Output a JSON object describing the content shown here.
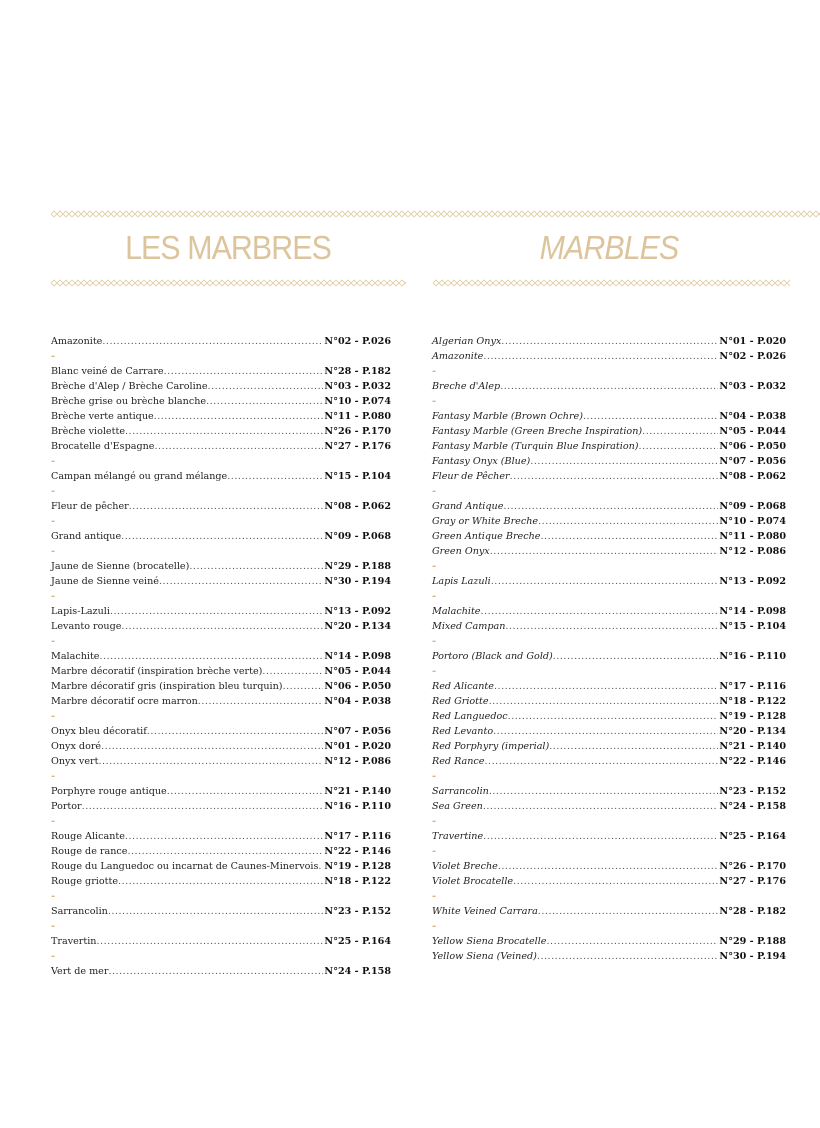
{
  "colors": {
    "accent": "#d9b57a",
    "title": "#dcc49c",
    "text": "#222222"
  },
  "left": {
    "title": "LES MARBRES",
    "items": [
      {
        "name": "Amazonite",
        "ref": "N°02 - P.026"
      },
      "-",
      {
        "name": "Blanc veiné de Carrare",
        "ref": "N°28 - P.182"
      },
      {
        "name": "Brèche d'Alep / Brèche Caroline",
        "ref": "N°03 - P.032"
      },
      {
        "name": "Brèche grise ou brèche blanche",
        "ref": "N°10 - P.074"
      },
      {
        "name": "Brèche verte antique",
        "ref": "N°11 - P.080"
      },
      {
        "name": "Brèche violette",
        "ref": "N°26 - P.170"
      },
      {
        "name": "Brocatelle d'Espagne",
        "ref": "N°27 - P.176"
      },
      "-",
      {
        "name": "Campan mélangé ou grand mélange",
        "ref": "N°15 - P.104"
      },
      "-",
      {
        "name": "Fleur de pêcher",
        "ref": "N°08 - P.062"
      },
      "-",
      {
        "name": "Grand antique",
        "ref": "N°09 - P.068"
      },
      "-",
      {
        "name": "Jaune de Sienne (brocatelle)",
        "ref": "N°29 - P.188"
      },
      {
        "name": "Jaune de Sienne veiné",
        "ref": "N°30 - P.194"
      },
      "-",
      {
        "name": "Lapis-Lazuli",
        "ref": "N°13 - P.092"
      },
      {
        "name": "Levanto rouge",
        "ref": "N°20 - P.134"
      },
      "-",
      {
        "name": "Malachite",
        "ref": "N°14 - P.098"
      },
      {
        "name": "Marbre décoratif (inspiration brèche verte)",
        "ref": "N°05 - P.044"
      },
      {
        "name": "Marbre décoratif gris (inspiration bleu turquin)",
        "ref": "N°06 - P.050"
      },
      {
        "name": "Marbre décoratif ocre marron",
        "ref": "N°04 - P.038"
      },
      "-",
      {
        "name": "Onyx bleu décoratif",
        "ref": "N°07 - P.056"
      },
      {
        "name": "Onyx doré",
        "ref": "N°01 - P.020"
      },
      {
        "name": "Onyx vert",
        "ref": "N°12 - P.086"
      },
      "-",
      {
        "name": "Porphyre rouge antique",
        "ref": "N°21 - P.140"
      },
      {
        "name": "Portor",
        "ref": "N°16 - P.110"
      },
      "-",
      {
        "name": "Rouge Alicante",
        "ref": "N°17 - P.116"
      },
      {
        "name": "Rouge de rance",
        "ref": "N°22 - P.146"
      },
      {
        "name": "Rouge du Languedoc ou incarnat de Caunes-Minervois",
        "ref": "N°19 - P.128"
      },
      {
        "name": "Rouge griotte",
        "ref": "N°18 - P.122"
      },
      "-",
      {
        "name": "Sarrancolin",
        "ref": "N°23 - P.152"
      },
      "-",
      {
        "name": "Travertin",
        "ref": "N°25 - P.164"
      },
      "-",
      {
        "name": "Vert de mer",
        "ref": "N°24 - P.158"
      }
    ]
  },
  "right": {
    "title": "MARBLES",
    "items": [
      {
        "name": "Algerian Onyx",
        "ref": "N°01 - P.020"
      },
      {
        "name": "Amazonite",
        "ref": "N°02 - P.026"
      },
      "-",
      {
        "name": "Breche d'Alep",
        "ref": "N°03 - P.032"
      },
      "-",
      {
        "name": "Fantasy Marble (Brown Ochre)",
        "ref": "N°04 - P.038"
      },
      {
        "name": "Fantasy Marble (Green Breche Inspiration)",
        "ref": "N°05 - P.044"
      },
      {
        "name": "Fantasy Marble (Turquin Blue Inspiration)",
        "ref": "N°06 - P.050"
      },
      {
        "name": "Fantasy Onyx (Blue)",
        "ref": "N°07 - P.056"
      },
      {
        "name": "Fleur de Pêcher",
        "ref": "N°08 - P.062"
      },
      "-",
      {
        "name": "Grand Antique",
        "ref": "N°09 - P.068"
      },
      {
        "name": "Gray or White Breche",
        "ref": "N°10 - P.074"
      },
      {
        "name": "Green Antique Breche",
        "ref": "N°11 - P.080"
      },
      {
        "name": "Green Onyx",
        "ref": "N°12 - P.086"
      },
      "-",
      {
        "name": "Lapis Lazuli",
        "ref": "N°13 - P.092"
      },
      "-",
      {
        "name": "Malachite",
        "ref": "N°14 - P.098"
      },
      {
        "name": "Mixed Campan",
        "ref": "N°15 - P.104"
      },
      "-",
      {
        "name": "Portoro (Black and Gold)",
        "ref": "N°16 - P.110"
      },
      "-",
      {
        "name": "Red Alicante",
        "ref": "N°17 - P.116"
      },
      {
        "name": "Red Griotte",
        "ref": "N°18 - P.122"
      },
      {
        "name": "Red Languedoc",
        "ref": "N°19 - P.128"
      },
      {
        "name": "Red Levanto",
        "ref": "N°20 - P.134"
      },
      {
        "name": "Red Porphyry (imperial)",
        "ref": "N°21 - P.140"
      },
      {
        "name": "Red Rance",
        "ref": "N°22 - P.146"
      },
      "-",
      {
        "name": "Sarrancolin",
        "ref": "N°23 - P.152"
      },
      {
        "name": "Sea Green",
        "ref": "N°24 - P.158"
      },
      "-",
      {
        "name": "Travertine",
        "ref": "N°25 - P.164"
      },
      "-",
      {
        "name": "Violet Breche",
        "ref": "N°26 - P.170"
      },
      {
        "name": "Violet Brocatelle",
        "ref": "N°27 - P.176"
      },
      "-",
      {
        "name": "White Veined Carrara",
        "ref": "N°28 - P.182"
      },
      "-",
      {
        "name": "Yellow Siena Brocatelle",
        "ref": "N°29 - P.188"
      },
      {
        "name": "Yellow Siena (Veined)",
        "ref": "N°30 - P.194"
      }
    ]
  }
}
